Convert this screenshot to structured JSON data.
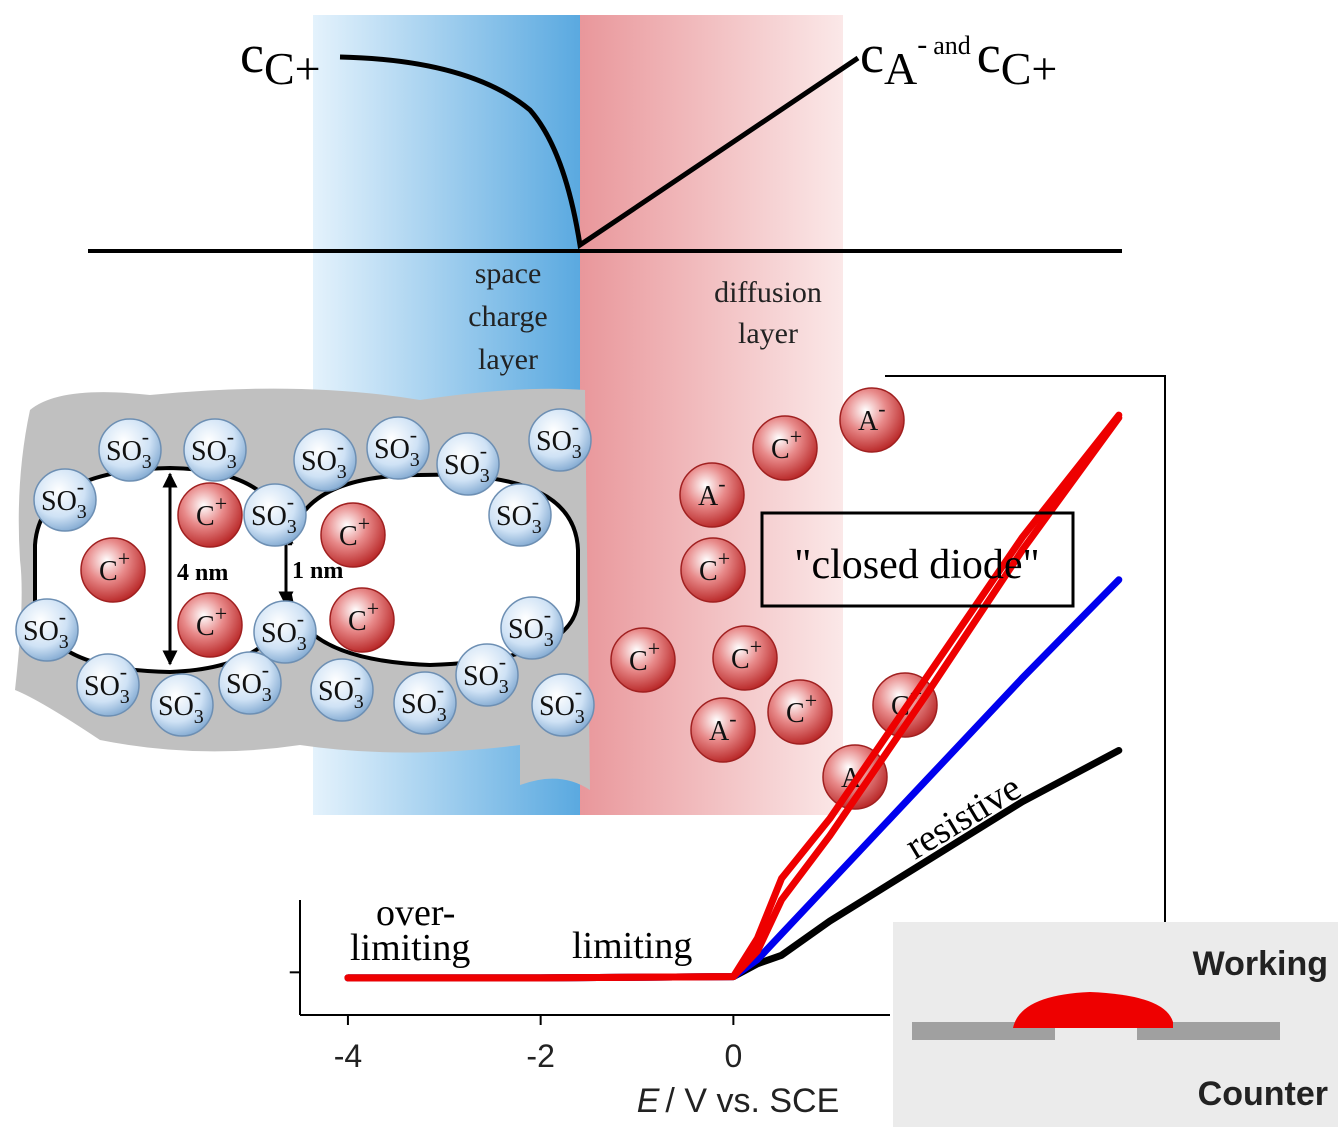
{
  "diagram": {
    "left_conc": {
      "symbol": "c",
      "sub": "C+"
    },
    "right_conc": {
      "symbol": "c",
      "sub": "A",
      "sup": "-",
      "joiner": "and",
      "symbol2": "c",
      "sub2": "C+"
    },
    "space_layer": [
      "space",
      "charge",
      "layer"
    ],
    "diffusion_layer": [
      "diffusion",
      "layer"
    ],
    "ions": {
      "so3": {
        "base": "SO",
        "sub": "3",
        "sup": "-"
      },
      "cation": {
        "base": "C",
        "sup": "+"
      },
      "anion": {
        "base": "A",
        "sup": "-"
      }
    },
    "pore_big": "4 nm",
    "pore_small": "1 nm",
    "closed_diode": "\"closed diode\"",
    "inset": {
      "top": "Working",
      "bottom": "Counter"
    }
  },
  "chart_data": {
    "type": "line",
    "x": [
      -4,
      -2,
      0,
      0.25,
      0.5,
      1,
      2,
      3,
      4
    ],
    "series": [
      {
        "color": "#000000",
        "values": [
          0.87,
          0.87,
          0.9,
          1.2,
          1.4,
          2.2,
          3.6,
          5.0,
          6.2
        ]
      },
      {
        "color": "#0000ee",
        "values": [
          0.87,
          0.87,
          0.9,
          1.3,
          1.9,
          3.1,
          5.5,
          7.9,
          10.2
        ]
      },
      {
        "color": "#ee0000",
        "values": [
          0.87,
          0.87,
          0.9,
          1.5,
          2.7,
          4.2,
          7.5,
          10.9,
          14.0
        ]
      },
      {
        "color": "#ee0000",
        "values": [
          0.87,
          0.87,
          0.9,
          1.8,
          3.2,
          4.6,
          7.9,
          11.2,
          14.06
        ]
      }
    ],
    "xlim": [
      -4.5,
      4.5
    ],
    "xticks": [
      -4,
      -2,
      0
    ],
    "ylim": [
      0,
      15
    ],
    "yticks": [
      1
    ],
    "xlabel_var": "E",
    "xlabel": "/ V vs. SCE",
    "annotations": {
      "over": "over-",
      "overlimiting": "limiting",
      "limiting": "limiting",
      "resistive": "resistive"
    }
  }
}
